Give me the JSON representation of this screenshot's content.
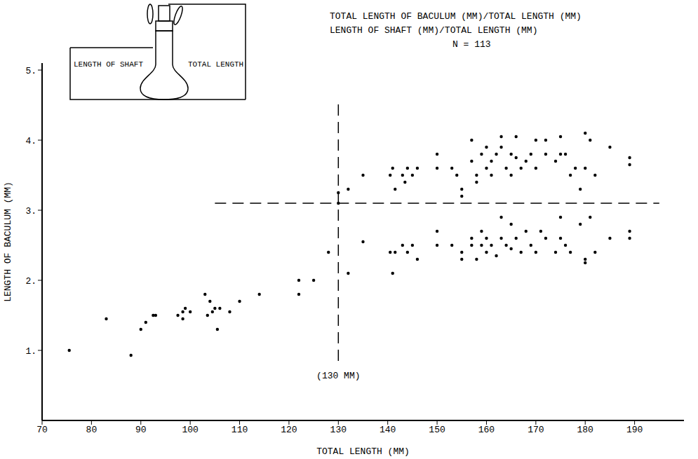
{
  "chart_data": {
    "type": "scatter",
    "title": "TOTAL LENGTH OF BACULUM (MM)/TOTAL LENGTH (MM)",
    "subtitle": "LENGTH OF SHAFT (MM)/TOTAL LENGTH (MM)",
    "n_label": "N = 113",
    "xlabel": "TOTAL LENGTH (MM)",
    "ylabel": "LENGTH OF BACULUM (MM)",
    "diagram_labels": [
      "LENGTH OF SHAFT",
      "TOTAL LENGTH"
    ],
    "color": "#000000",
    "marker": "circle",
    "grid": false,
    "xlim": [
      70,
      200
    ],
    "ylim": [
      0,
      5.1
    ],
    "xticks": [
      70,
      80,
      90,
      100,
      110,
      120,
      130,
      140,
      150,
      160,
      170,
      180,
      190
    ],
    "yticks": [
      {
        "value": 1,
        "label": "1."
      },
      {
        "value": 2,
        "label": "2."
      },
      {
        "value": 3,
        "label": "3."
      },
      {
        "value": 4,
        "label": "4."
      },
      {
        "value": 5,
        "label": "5."
      }
    ],
    "reference_lines": [
      {
        "axis": "x",
        "value": 130,
        "from": 0.85,
        "to": 4.6
      },
      {
        "axis": "y",
        "value": 3.1,
        "from": 105,
        "to": 195
      }
    ],
    "annotations": [
      {
        "text": "(130 MM)",
        "x": 130,
        "y": 0.65
      }
    ],
    "x": [
      75.5,
      83,
      88,
      90,
      91,
      92.5,
      93,
      97.5,
      98.5,
      98.5,
      99,
      100,
      103,
      103.5,
      104,
      104.5,
      105,
      105.5,
      106,
      108,
      110,
      114,
      122,
      122,
      125,
      128,
      130,
      130,
      132,
      132,
      135,
      135,
      140.5,
      141,
      141.5,
      143,
      143.5,
      144,
      145,
      146,
      150,
      150,
      153,
      154,
      155,
      155,
      157,
      157,
      158,
      158,
      159,
      160,
      160,
      161,
      161,
      162,
      163,
      163,
      164,
      165,
      165,
      166,
      166,
      167,
      168,
      169,
      170,
      170,
      172,
      172,
      174,
      175,
      175,
      176,
      177,
      178,
      179,
      180,
      180,
      181,
      182,
      185,
      189,
      189,
      140.5,
      141,
      141.5,
      143,
      144,
      145,
      146,
      150,
      150,
      153,
      155,
      155,
      157,
      157,
      158,
      159,
      159,
      160,
      160,
      161,
      162,
      163,
      163,
      164,
      165,
      165,
      166,
      167,
      168,
      169,
      170,
      171,
      172,
      174,
      175,
      175,
      176,
      177,
      179,
      180,
      180,
      181,
      182,
      185,
      189,
      189
    ],
    "values": [
      1.0,
      1.45,
      0.93,
      1.3,
      1.4,
      1.5,
      1.5,
      1.5,
      1.55,
      1.45,
      1.6,
      1.55,
      1.8,
      1.5,
      1.7,
      1.55,
      1.6,
      1.3,
      1.6,
      1.55,
      1.7,
      1.8,
      2.0,
      1.8,
      2.0,
      2.4,
      3.25,
      3.1,
      3.3,
      2.1,
      3.5,
      2.55,
      3.5,
      3.6,
      3.3,
      3.5,
      3.4,
      3.6,
      3.5,
      3.6,
      3.8,
      3.6,
      3.6,
      3.5,
      3.3,
      3.2,
      4.0,
      3.7,
      3.5,
      3.4,
      3.8,
      3.6,
      3.9,
      3.7,
      3.5,
      3.8,
      4.05,
      3.9,
      3.6,
      3.8,
      3.5,
      4.05,
      3.75,
      3.6,
      3.7,
      3.8,
      4.0,
      3.6,
      4.0,
      3.8,
      3.7,
      3.8,
      4.05,
      3.8,
      3.5,
      3.6,
      3.3,
      4.1,
      3.6,
      4.0,
      3.5,
      3.9,
      3.75,
      3.65,
      2.4,
      2.1,
      2.4,
      2.5,
      2.4,
      2.5,
      2.3,
      2.7,
      2.5,
      2.5,
      2.3,
      2.4,
      2.5,
      2.6,
      2.3,
      2.5,
      2.7,
      2.4,
      2.6,
      2.5,
      2.35,
      2.9,
      2.6,
      2.5,
      2.8,
      2.45,
      2.6,
      2.4,
      2.7,
      2.5,
      2.4,
      2.7,
      2.6,
      2.4,
      2.9,
      2.6,
      2.5,
      2.4,
      2.8,
      2.3,
      2.25,
      2.9,
      2.4,
      2.6,
      2.7,
      2.6
    ]
  }
}
